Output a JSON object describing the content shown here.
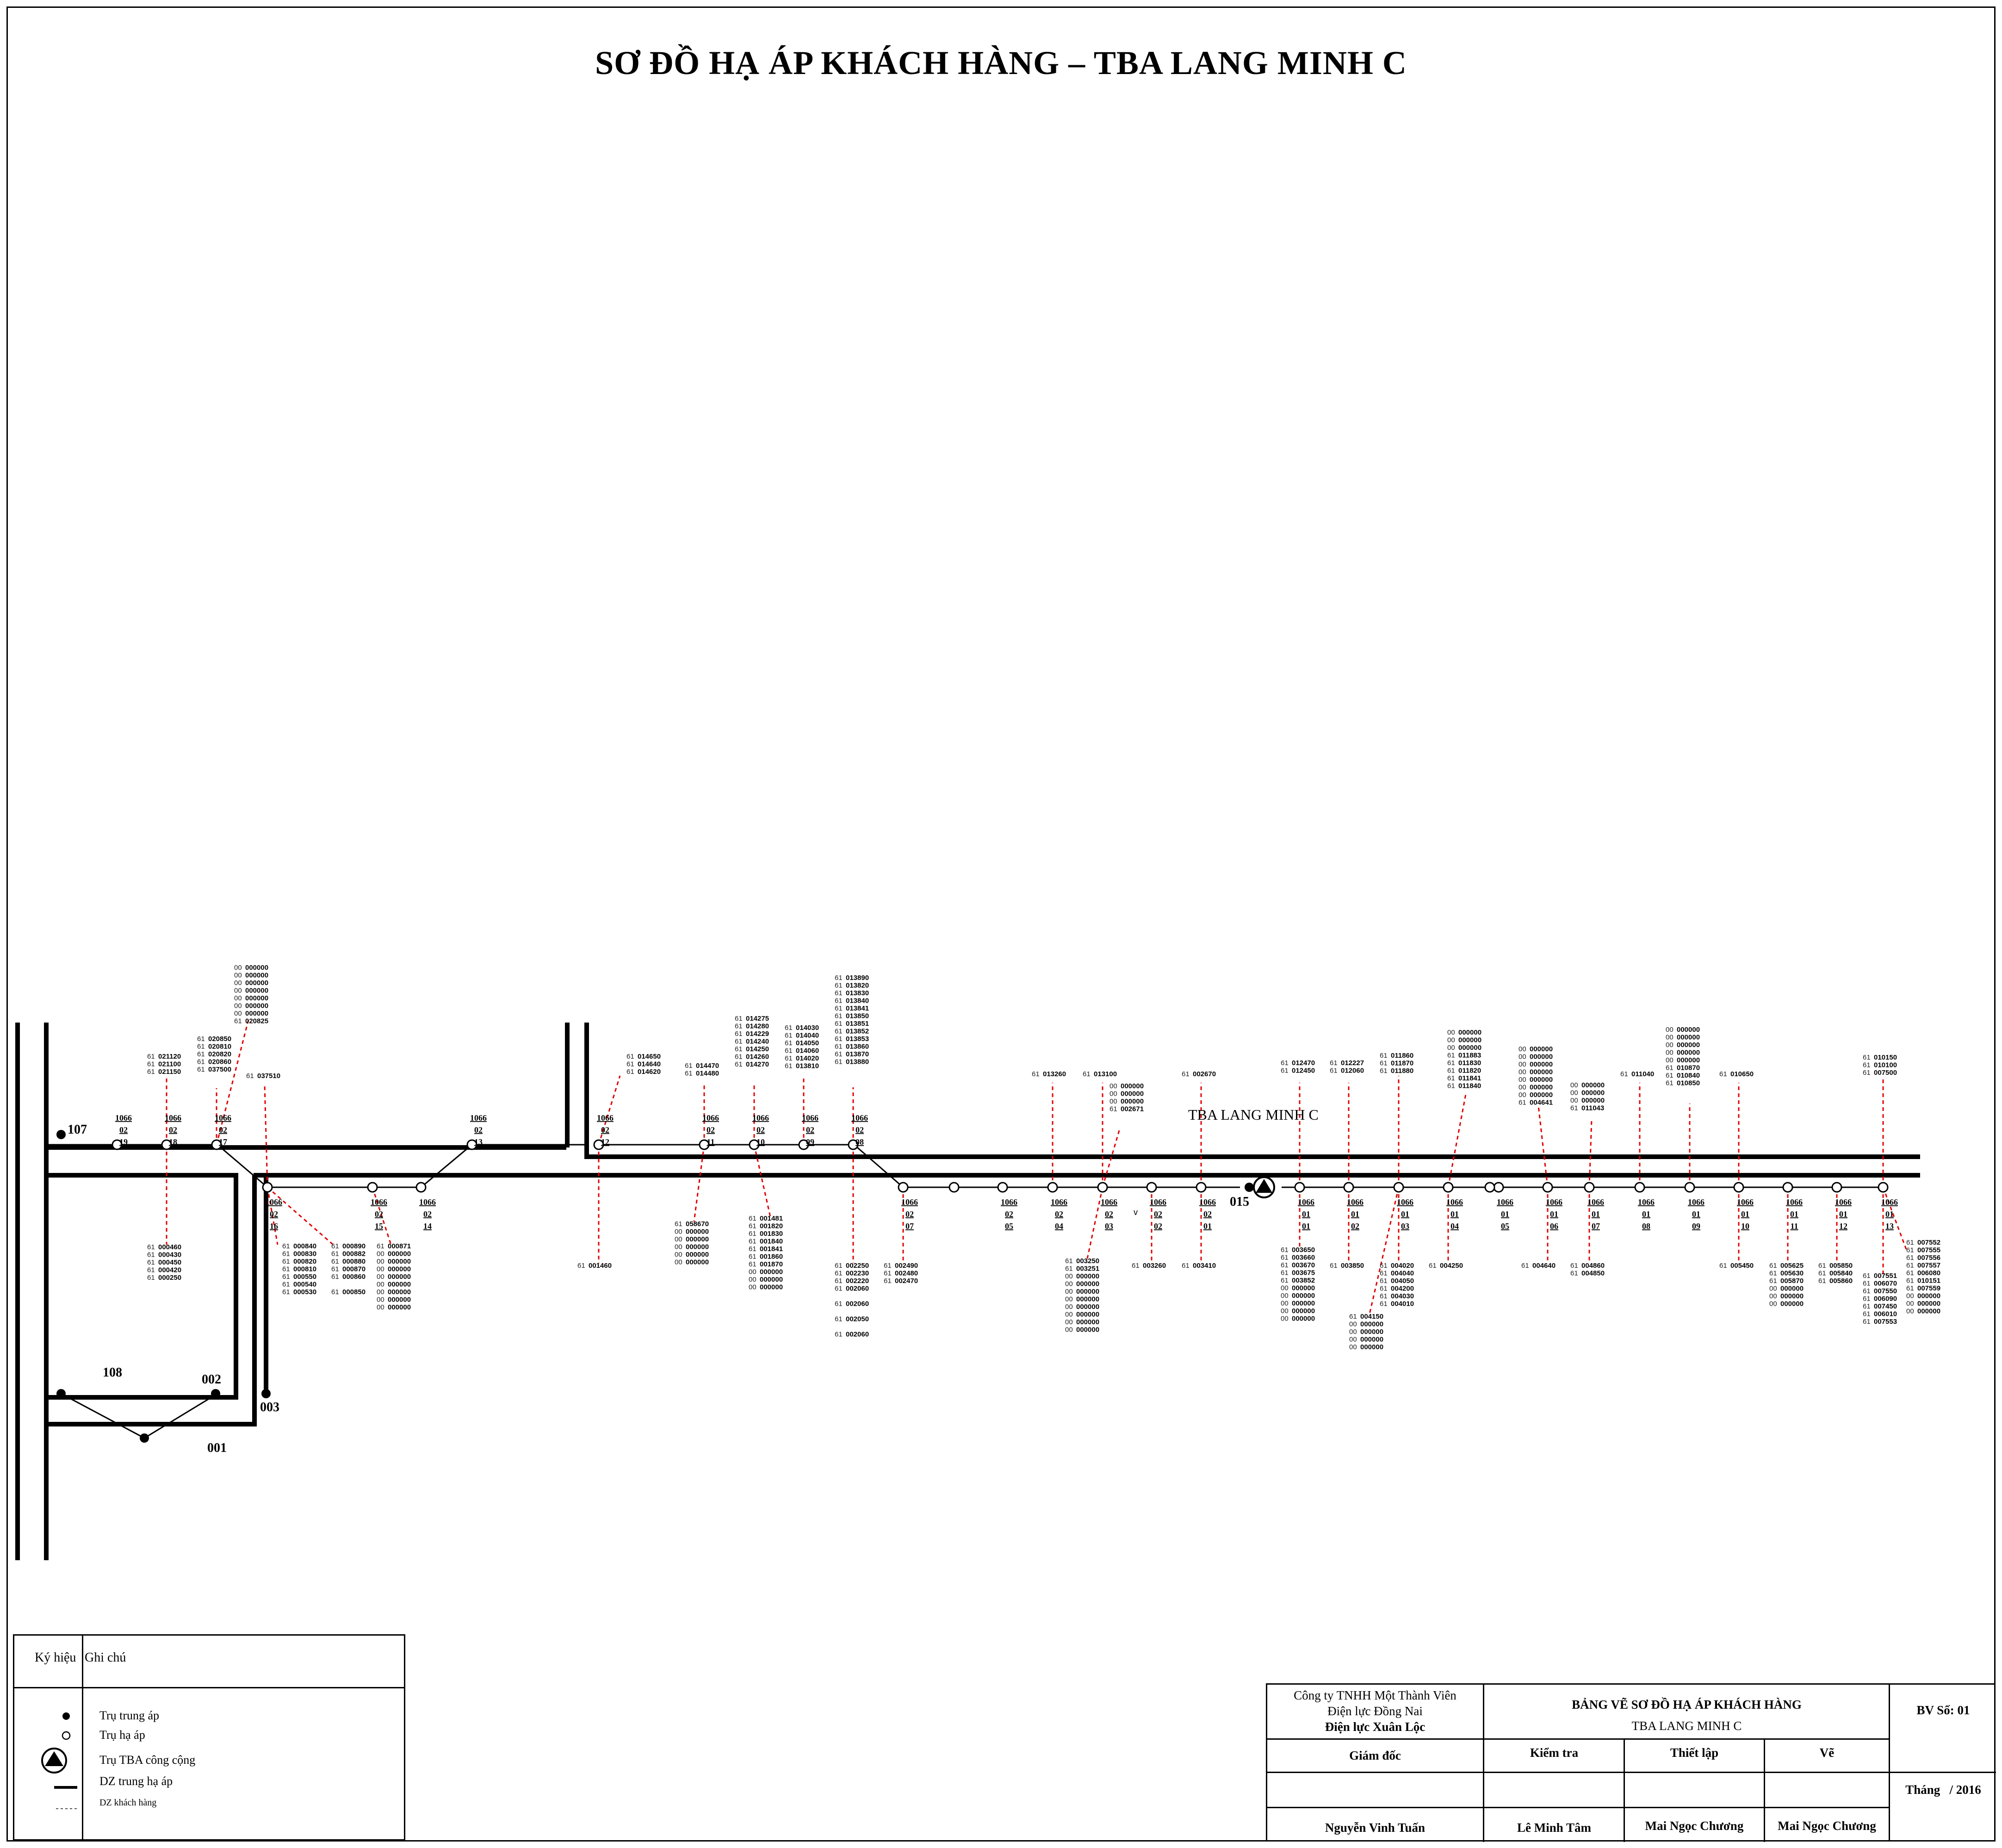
{
  "title": "SƠ ĐỒ HẠ ÁP KHÁCH HÀNG – TBA LANG MINH C",
  "station": {
    "name": "TBA LANG MINH C",
    "code": "015"
  },
  "mv_nodes": [
    "107",
    "108",
    "002",
    "003",
    "001"
  ],
  "poles": [
    {
      "id": "1066 02 19"
    },
    {
      "id": "1066 02 18"
    },
    {
      "id": "1066 02 17"
    },
    {
      "id": "1066 02 16"
    },
    {
      "id": "1066 02 15"
    },
    {
      "id": "1066 02 14"
    },
    {
      "id": "1066 02 13"
    },
    {
      "id": "1066 02 12"
    },
    {
      "id": "1066 02 11"
    },
    {
      "id": "1066 02 10"
    },
    {
      "id": "1066 02 09"
    },
    {
      "id": "1066 02 08"
    },
    {
      "id": "1066 02 07"
    },
    {
      "id": "1066 02 05"
    },
    {
      "id": "1066 02 04"
    },
    {
      "id": "1066 02 03"
    },
    {
      "id": "1066 02 02"
    },
    {
      "id": "1066 02 01"
    },
    {
      "id": "1066 01 01"
    },
    {
      "id": "1066 01 02"
    },
    {
      "id": "1066 01 03"
    },
    {
      "id": "1066 01 04"
    },
    {
      "id": "1066 01 05"
    },
    {
      "id": "1066 01 06"
    },
    {
      "id": "1066 01 07"
    },
    {
      "id": "1066 01 08"
    },
    {
      "id": "1066 01 09"
    },
    {
      "id": "1066 01 10"
    },
    {
      "id": "1066 01 11"
    },
    {
      "id": "1066 01 12"
    },
    {
      "id": "1066 01 13"
    }
  ],
  "customer_groups": [
    {
      "lines": [
        "61 021120",
        "61 021100",
        "61 021150"
      ]
    },
    {
      "lines": [
        "61 000460",
        "61 000430",
        "61 000450",
        "61 000420",
        "61 000250"
      ]
    },
    {
      "lines": [
        "61 020850",
        "61 020810",
        "61 020820",
        "61 020860",
        "61 037500"
      ]
    },
    {
      "lines": [
        "00 000000",
        "00 000000",
        "00 000000",
        "00 000000",
        "00 000000",
        "00 000000",
        "00 000000",
        "61 020825"
      ]
    },
    {
      "lines": [
        "61 037510"
      ]
    },
    {
      "lines": [
        "61 000840",
        "61 000830",
        "61 000820",
        "61 000810",
        "61 000550",
        "61 000540",
        "61 000530"
      ]
    },
    {
      "lines": [
        "61 000890",
        "61 000882",
        "61 000880",
        "61 000870",
        "61 000860",
        "",
        "61 000850"
      ]
    },
    {
      "lines": [
        "61 000871",
        "00 000000",
        "00 000000",
        "00 000000",
        "00 000000",
        "00 000000",
        "00 000000",
        "00 000000",
        "00 000000"
      ]
    },
    {
      "lines": [
        "61 014650",
        "61 014640",
        "61 014620"
      ]
    },
    {
      "lines": [
        "61 001460"
      ]
    },
    {
      "lines": [
        "61 014470",
        "61 014480"
      ]
    },
    {
      "lines": [
        "61 058670",
        "00 000000",
        "00 000000",
        "00 000000",
        "00 000000",
        "00 000000"
      ]
    },
    {
      "lines": [
        "61 014275",
        "61 014280",
        "61 014229",
        "61 014240",
        "61 014250",
        "61 014260",
        "61 014270"
      ]
    },
    {
      "lines": [
        "61 001481",
        "61 001820",
        "61 001830",
        "61 001840",
        "61 001841",
        "61 001860",
        "61 001870",
        "00 000000",
        "00 000000",
        "00 000000"
      ]
    },
    {
      "lines": [
        "61 014030",
        "61 014040",
        "61 014050",
        "61 014060",
        "61 014020",
        "61 013810"
      ]
    },
    {
      "lines": [
        "61 013890",
        "61 013820",
        "61 013830",
        "61 013840",
        "61 013841",
        "61 013850",
        "61 013851",
        "61 013852",
        "61 013853",
        "61 013860",
        "61 013870",
        "61 013880"
      ]
    },
    {
      "lines": [
        "61 002250",
        "61 002230",
        "61 002220",
        "61 002060",
        "",
        "61 002060",
        "",
        "61 002050",
        "",
        "61 002060"
      ]
    },
    {
      "lines": [
        "61 002490",
        "61 002480",
        "61 002470"
      ]
    },
    {
      "lines": [
        "61 013260"
      ]
    },
    {
      "lines": [
        "61 013100"
      ]
    },
    {
      "lines": [
        "00 000000",
        "00 000000",
        "00 000000",
        "61 002671"
      ]
    },
    {
      "lines": [
        "61 003250",
        "61 003251",
        "00 000000",
        "00 000000",
        "00 000000",
        "00 000000",
        "00 000000",
        "00 000000",
        "00 000000",
        "00 000000"
      ]
    },
    {
      "lines": [
        "61 003260"
      ]
    },
    {
      "lines": [
        "61 002670"
      ]
    },
    {
      "lines": [
        "61 003410"
      ]
    },
    {
      "lines": [
        "61 012470",
        "61 012450"
      ]
    },
    {
      "lines": [
        "61 003650",
        "61 003660",
        "61 003670",
        "61 003675",
        "61 003852",
        "00 000000",
        "00 000000",
        "00 000000",
        "00 000000",
        "00 000000"
      ]
    },
    {
      "lines": [
        "61 012227",
        "61 012060"
      ]
    },
    {
      "lines": [
        "61 003850"
      ]
    },
    {
      "lines": [
        "61 011860",
        "61 011870",
        "61 011880"
      ]
    },
    {
      "lines": [
        "61 004020",
        "61 004040",
        "61 004050",
        "61 004200",
        "61 004030",
        "61 004010"
      ]
    },
    {
      "lines": [
        "61 004150",
        "00 000000",
        "00 000000",
        "00 000000",
        "00 000000"
      ]
    },
    {
      "lines": [
        "00 000000",
        "00 000000",
        "00 000000",
        "61 011883",
        "61 011830",
        "61 011820",
        "61 011841",
        "61 011840"
      ]
    },
    {
      "lines": [
        "61 004250"
      ]
    },
    {
      "lines": [
        "00 000000",
        "00 000000",
        "00 000000",
        "00 000000",
        "00 000000",
        "00 000000",
        "00 000000",
        "61 004641"
      ]
    },
    {
      "lines": [
        "61 004640"
      ]
    },
    {
      "lines": [
        "00 000000",
        "00 000000",
        "00 000000",
        "61 011043"
      ]
    },
    {
      "lines": [
        "61 004860",
        "61 004850"
      ]
    },
    {
      "lines": [
        "61 011040"
      ]
    },
    {
      "lines": [
        "00 000000",
        "00 000000",
        "00 000000",
        "00 000000",
        "00 000000",
        "61 010870",
        "61 010840",
        "61 010850"
      ]
    },
    {
      "lines": [
        "61 010650"
      ]
    },
    {
      "lines": [
        "61 005450"
      ]
    },
    {
      "lines": [
        "61 005625",
        "61 005630",
        "61 005870",
        "00 000000",
        "00 000000",
        "00 000000"
      ]
    },
    {
      "lines": [
        "61 005850",
        "61 005840",
        "61 005860"
      ]
    },
    {
      "lines": [
        "61 010150",
        "61 010100",
        "61 007500"
      ]
    },
    {
      "lines": [
        "61 007551",
        "61 006070",
        "61 007550",
        "61 006090",
        "61 007450",
        "61 006010",
        "61 007553"
      ]
    },
    {
      "lines": [
        "61 007552",
        "61 007555",
        "61 007556",
        "61 007557",
        "61 006080",
        "61 010151",
        "61 007559",
        "00 000000",
        "00 000000",
        "00 000000"
      ]
    }
  ],
  "stray_mark": "v",
  "legend": {
    "col1": "Ký hiệu",
    "col2": "Ghi chú",
    "items": [
      "Trụ trung áp",
      "Trụ hạ áp",
      "Trụ TBA công cộng",
      "DZ trung hạ áp",
      "DZ khách hàng"
    ]
  },
  "title_block": {
    "company_line1": "Công ty TNHH Một Thành Viên",
    "company_line2": "Điện lực Đồng Nai",
    "company_line3": "Điện lực Xuân Lộc",
    "drawing_title": "BẢNG VẼ SƠ ĐỒ HẠ ÁP KHÁCH HÀNG",
    "drawing_subtitle": "TBA LANG MINH C",
    "sheet_no": "BV Số: 01",
    "role_director": "Giám đốc",
    "role_check": "Kiểm tra",
    "role_setup": "Thiết lập",
    "role_draw": "Vẽ",
    "date": "Tháng   / 2016",
    "name_director": "Nguyễn Vinh Tuấn",
    "name_check": "Lê Minh Tâm",
    "name_setup": "Mai Ngọc Chương",
    "name_draw": "Mai Ngọc Chương"
  }
}
